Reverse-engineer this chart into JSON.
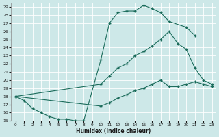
{
  "xlabel": "Humidex (Indice chaleur)",
  "background_color": "#cde8e8",
  "line_color": "#1a6b5a",
  "xlim": [
    -0.5,
    23.5
  ],
  "ylim": [
    15,
    29.5
  ],
  "xticks": [
    0,
    1,
    2,
    3,
    4,
    5,
    6,
    7,
    8,
    9,
    10,
    11,
    12,
    13,
    14,
    15,
    16,
    17,
    18,
    19,
    20,
    21,
    22,
    23
  ],
  "yticks": [
    15,
    16,
    17,
    18,
    19,
    20,
    21,
    22,
    23,
    24,
    25,
    26,
    27,
    28,
    29
  ],
  "line1_x": [
    0,
    1,
    2,
    3,
    4,
    5,
    6,
    7,
    8,
    10,
    11,
    12,
    13,
    14,
    15,
    16,
    17,
    18,
    20,
    21
  ],
  "line1_y": [
    18,
    17.5,
    16.5,
    16.0,
    15.5,
    15.2,
    15.2,
    15.0,
    15.0,
    22.5,
    27.0,
    28.3,
    28.5,
    28.5,
    29.2,
    28.8,
    28.3,
    27.2,
    26.5,
    25.5
  ],
  "line2_x": [
    0,
    10,
    11,
    12,
    13,
    14,
    15,
    16,
    17,
    18,
    19,
    20,
    21,
    22,
    23
  ],
  "line2_y": [
    18,
    19.5,
    20.5,
    21.5,
    22.0,
    23.0,
    23.5,
    24.2,
    25.0,
    26.0,
    24.5,
    23.8,
    21.5,
    20.0,
    19.5
  ],
  "line3_x": [
    0,
    10,
    11,
    12,
    13,
    14,
    15,
    16,
    17,
    18,
    19,
    20,
    21,
    22,
    23
  ],
  "line3_y": [
    18,
    16.8,
    17.2,
    17.8,
    18.2,
    18.7,
    19.0,
    19.5,
    20.0,
    19.2,
    19.2,
    19.5,
    19.8,
    19.5,
    19.2
  ]
}
